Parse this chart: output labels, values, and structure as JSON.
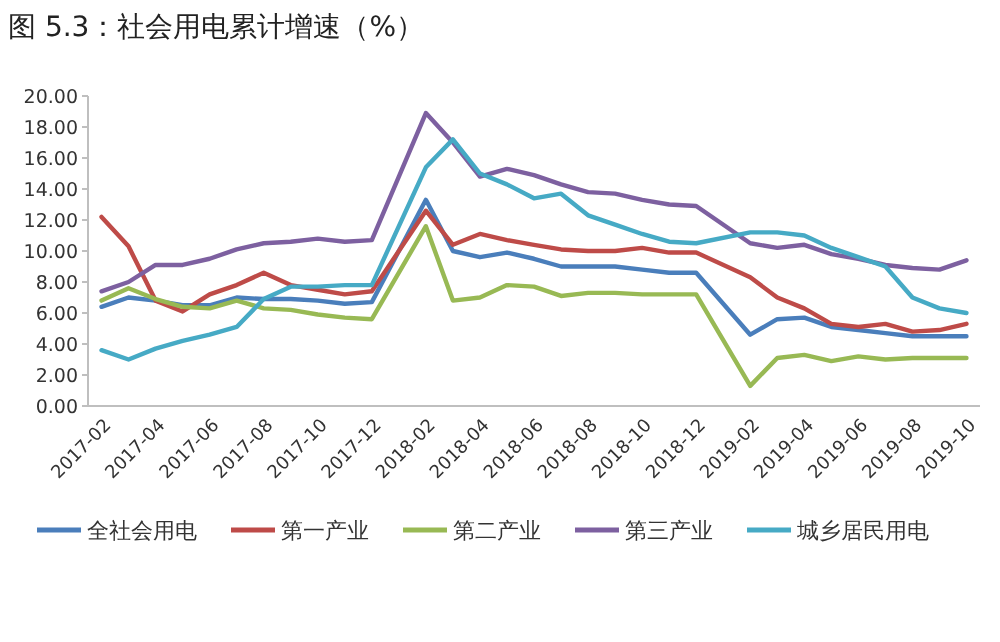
{
  "chart_data": {
    "type": "line",
    "title": "图 5.3：社会用电累计增速（%）",
    "categories": [
      "2017-02",
      null,
      "2017-04",
      null,
      "2017-06",
      null,
      "2017-08",
      null,
      "2017-10",
      null,
      "2017-12",
      null,
      "2018-02",
      null,
      "2018-04",
      null,
      "2018-06",
      null,
      "2018-08",
      null,
      "2018-10",
      null,
      "2018-12",
      null,
      "2019-02",
      null,
      "2019-04",
      null,
      "2019-06",
      null,
      "2019-08",
      null,
      "2019-10"
    ],
    "series": [
      {
        "name": "全社会用电",
        "color": "#4a7ebb",
        "values": [
          6.4,
          7.0,
          6.8,
          6.5,
          6.5,
          7.0,
          6.9,
          6.9,
          6.8,
          6.6,
          6.7,
          null,
          13.3,
          10.0,
          9.6,
          9.9,
          9.5,
          9.0,
          9.0,
          9.0,
          8.8,
          8.6,
          8.6,
          null,
          4.6,
          5.6,
          5.7,
          5.1,
          4.9,
          4.7,
          4.5,
          4.5,
          4.5
        ]
      },
      {
        "name": "第一产业",
        "color": "#be4b48",
        "values": [
          12.2,
          10.3,
          6.8,
          6.1,
          7.2,
          7.8,
          8.6,
          7.8,
          7.5,
          7.2,
          7.4,
          null,
          12.6,
          10.4,
          11.1,
          10.7,
          10.4,
          10.1,
          10.0,
          10.0,
          10.2,
          9.9,
          9.9,
          null,
          8.3,
          7.0,
          6.3,
          5.3,
          5.1,
          5.3,
          4.8,
          4.9,
          5.3
        ]
      },
      {
        "name": "第二产业",
        "color": "#98b954",
        "values": [
          6.8,
          7.6,
          6.9,
          6.4,
          6.3,
          6.8,
          6.3,
          6.2,
          5.9,
          5.7,
          5.6,
          null,
          11.6,
          6.8,
          7.0,
          7.8,
          7.7,
          7.1,
          7.3,
          7.3,
          7.2,
          7.2,
          7.2,
          null,
          1.3,
          3.1,
          3.3,
          2.9,
          3.2,
          3.0,
          3.1,
          3.1,
          3.1
        ]
      },
      {
        "name": "第三产业",
        "color": "#7d60a0",
        "values": [
          7.4,
          8.0,
          9.1,
          9.1,
          9.5,
          10.1,
          10.5,
          10.6,
          10.8,
          10.6,
          10.7,
          null,
          18.9,
          17.0,
          14.8,
          15.3,
          14.9,
          14.3,
          13.8,
          13.7,
          13.3,
          13.0,
          12.9,
          null,
          10.5,
          10.2,
          10.4,
          9.8,
          9.5,
          9.1,
          8.9,
          8.8,
          9.4
        ]
      },
      {
        "name": "城乡居民用电",
        "color": "#46aac5",
        "values": [
          3.6,
          3.0,
          3.7,
          4.2,
          4.6,
          5.1,
          6.9,
          7.7,
          7.7,
          7.8,
          7.8,
          null,
          15.4,
          17.2,
          15.0,
          14.3,
          13.4,
          13.7,
          12.3,
          11.7,
          11.1,
          10.6,
          10.5,
          null,
          11.2,
          11.2,
          11.0,
          10.2,
          9.6,
          9.0,
          7.0,
          6.3,
          6.0
        ]
      }
    ],
    "ylim": [
      0,
      20
    ],
    "yticks": [
      {
        "value": 0,
        "label": "0.00"
      },
      {
        "value": 2,
        "label": "2.00"
      },
      {
        "value": 4,
        "label": "4.00"
      },
      {
        "value": 6,
        "label": "6.00"
      },
      {
        "value": 8,
        "label": "8.00"
      },
      {
        "value": 10,
        "label": "10.00"
      },
      {
        "value": 12,
        "label": "12.00"
      },
      {
        "value": 14,
        "label": "14.00"
      },
      {
        "value": 16,
        "label": "16.00"
      },
      {
        "value": 18,
        "label": "18.00"
      },
      {
        "value": 20,
        "label": "20.00"
      }
    ],
    "grid": false,
    "legend": "bottom",
    "marker": "none",
    "line_style": "solid"
  }
}
